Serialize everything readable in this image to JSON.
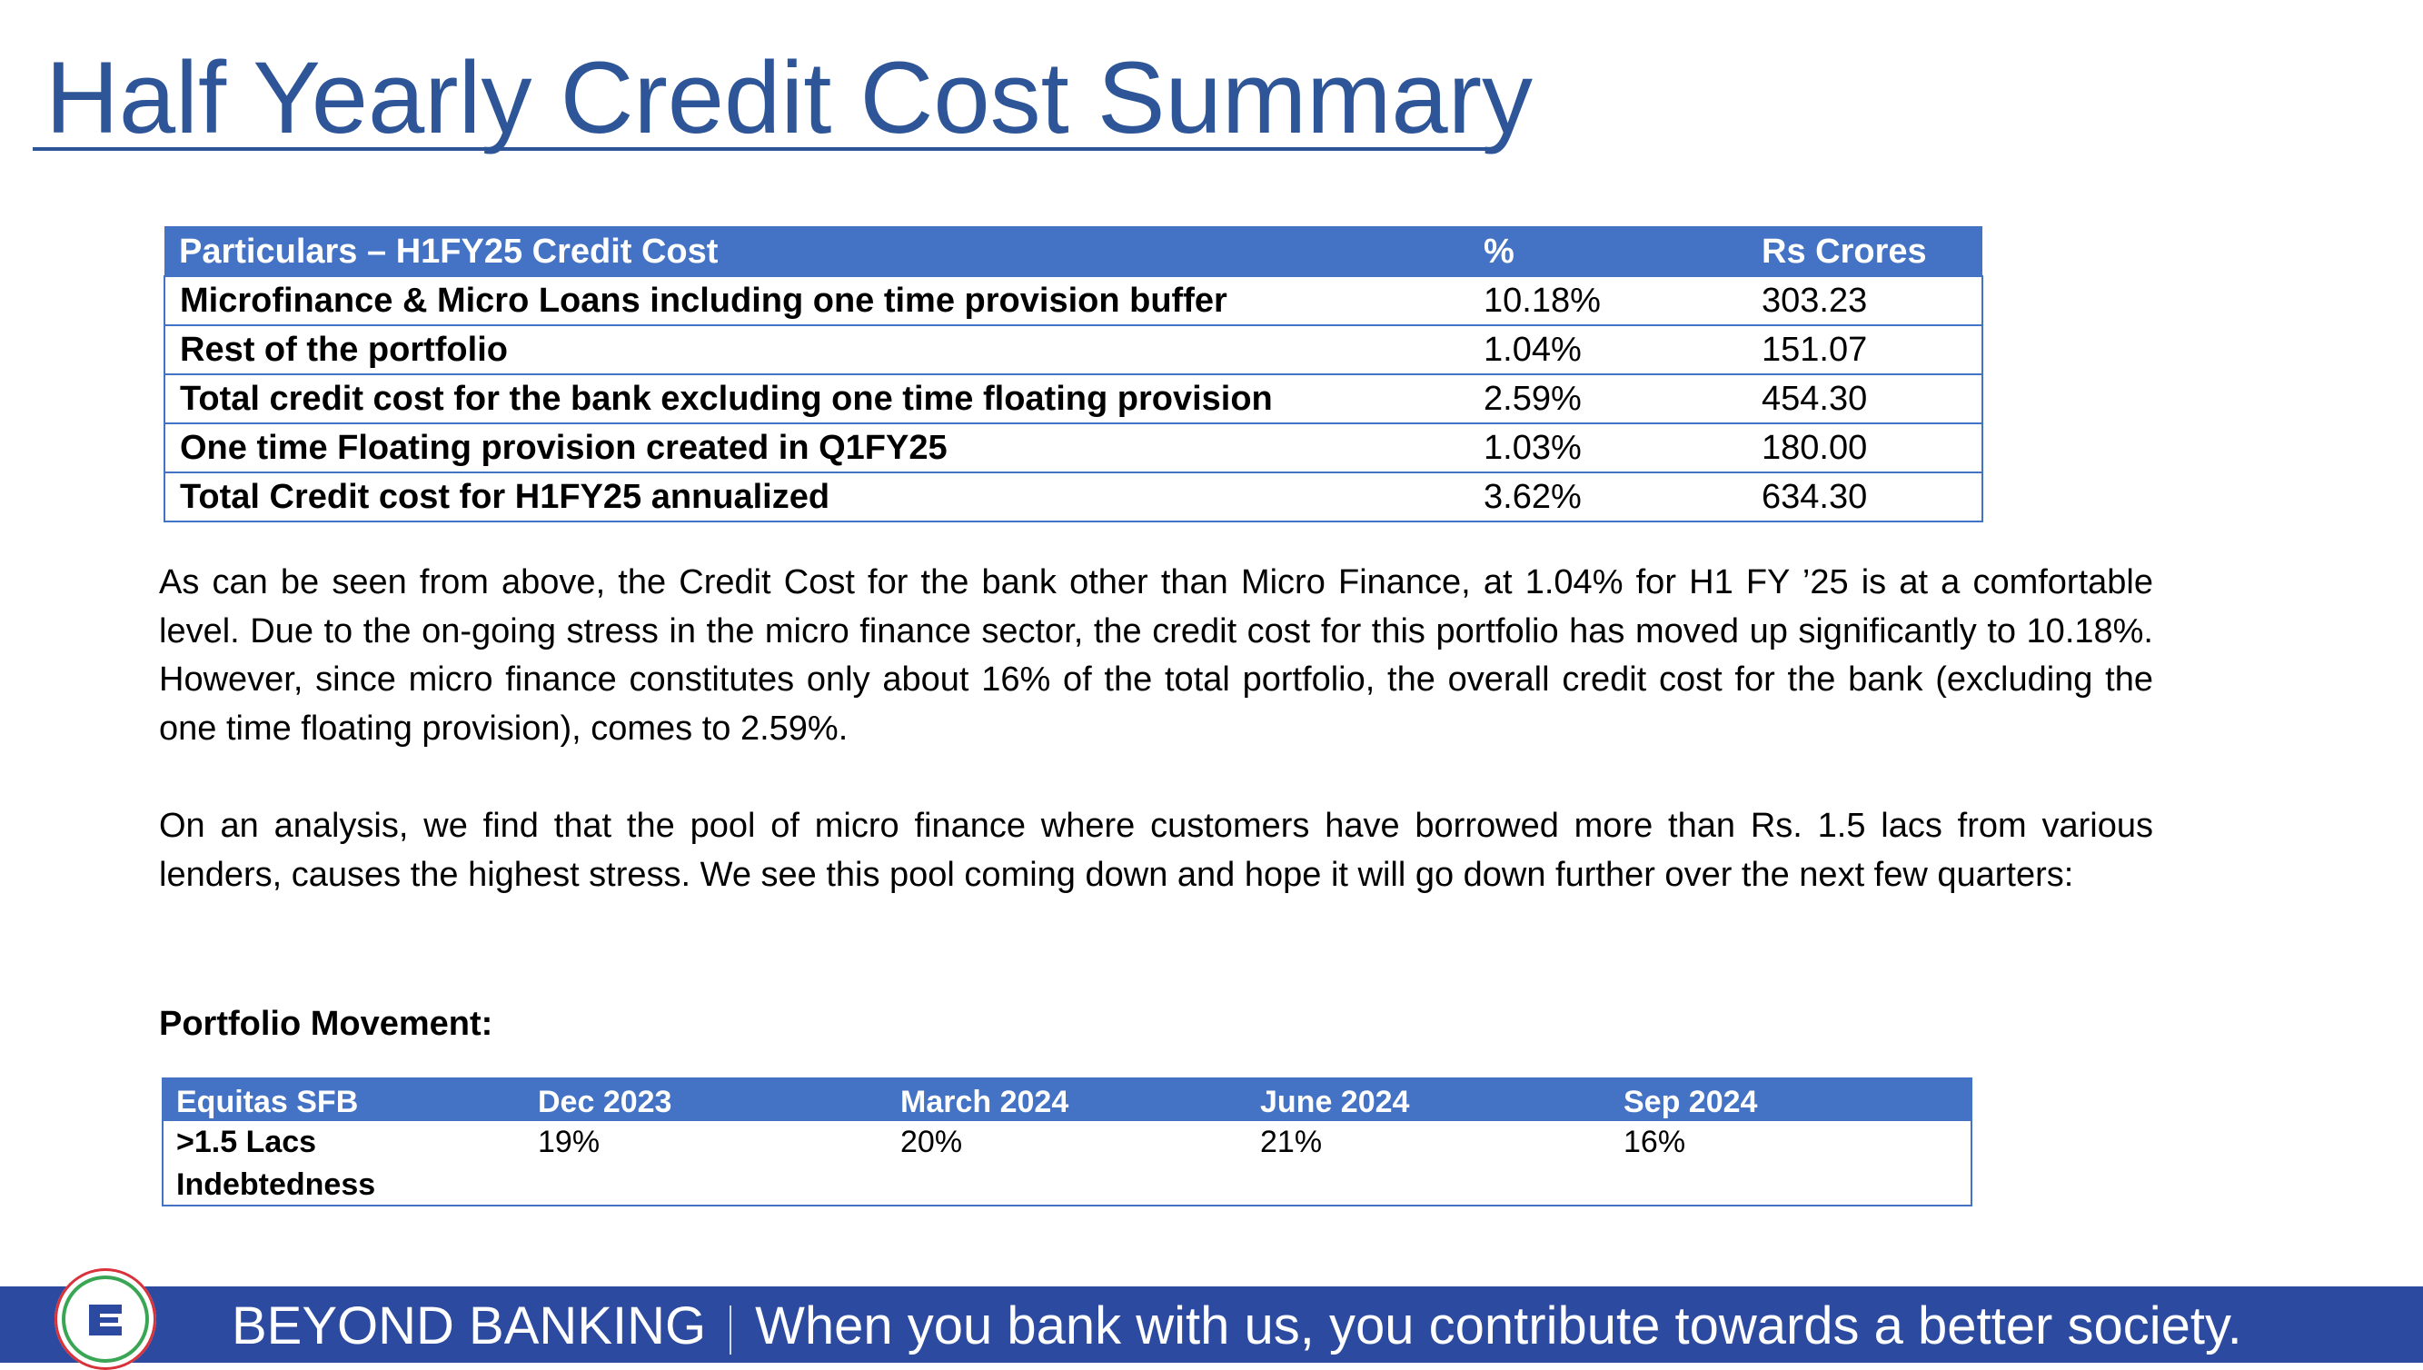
{
  "title": "Half Yearly Credit Cost Summary",
  "credit_table": {
    "headers": [
      "Particulars – H1FY25 Credit Cost",
      "%",
      "Rs Crores"
    ],
    "rows": [
      {
        "particular": "Microfinance & Micro Loans including one time provision buffer",
        "pct": "10.18%",
        "rs": "303.23"
      },
      {
        "particular": "Rest of the portfolio",
        "pct": "1.04%",
        "rs": "151.07"
      },
      {
        "particular": "Total credit cost for the bank excluding one time floating provision",
        "pct": "2.59%",
        "rs": "454.30"
      },
      {
        "particular": "One time Floating provision created in Q1FY25",
        "pct": "1.03%",
        "rs": "180.00"
      },
      {
        "particular": "Total Credit cost for H1FY25 annualized",
        "pct": "3.62%",
        "rs": "634.30"
      }
    ]
  },
  "paragraphs": [
    "As can be seen from above, the Credit Cost for the bank other than Micro Finance, at 1.04% for H1 FY ’25 is at a comfortable level. Due to the on-going stress in the micro finance sector, the credit cost for this portfolio has moved up significantly to 10.18%.  However, since micro finance constitutes only about 16% of the total portfolio, the overall credit cost for the bank (excluding the one time floating provision), comes to 2.59%.",
    "On an analysis, we find that the pool of micro finance where customers have borrowed more than Rs. 1.5 lacs from various lenders, causes the highest stress. We see this pool coming down and hope it will go down further over the next few quarters:"
  ],
  "subheading": "Portfolio Movement:",
  "movement_table": {
    "headers": [
      "Equitas SFB",
      "Dec 2023",
      "March 2024",
      "June 2024",
      "Sep 2024"
    ],
    "row": {
      "label": ">1.5 Lacs Indebtedness",
      "values": [
        "19%",
        "20%",
        "21%",
        "16%"
      ]
    }
  },
  "footer": {
    "brand": "BEYOND BANKING",
    "slogan": "When you bank with us, you contribute towards a better society.",
    "colors": {
      "bar": "#2B4AA0",
      "title": "#2E5597",
      "table_header": "#4472C4"
    }
  }
}
